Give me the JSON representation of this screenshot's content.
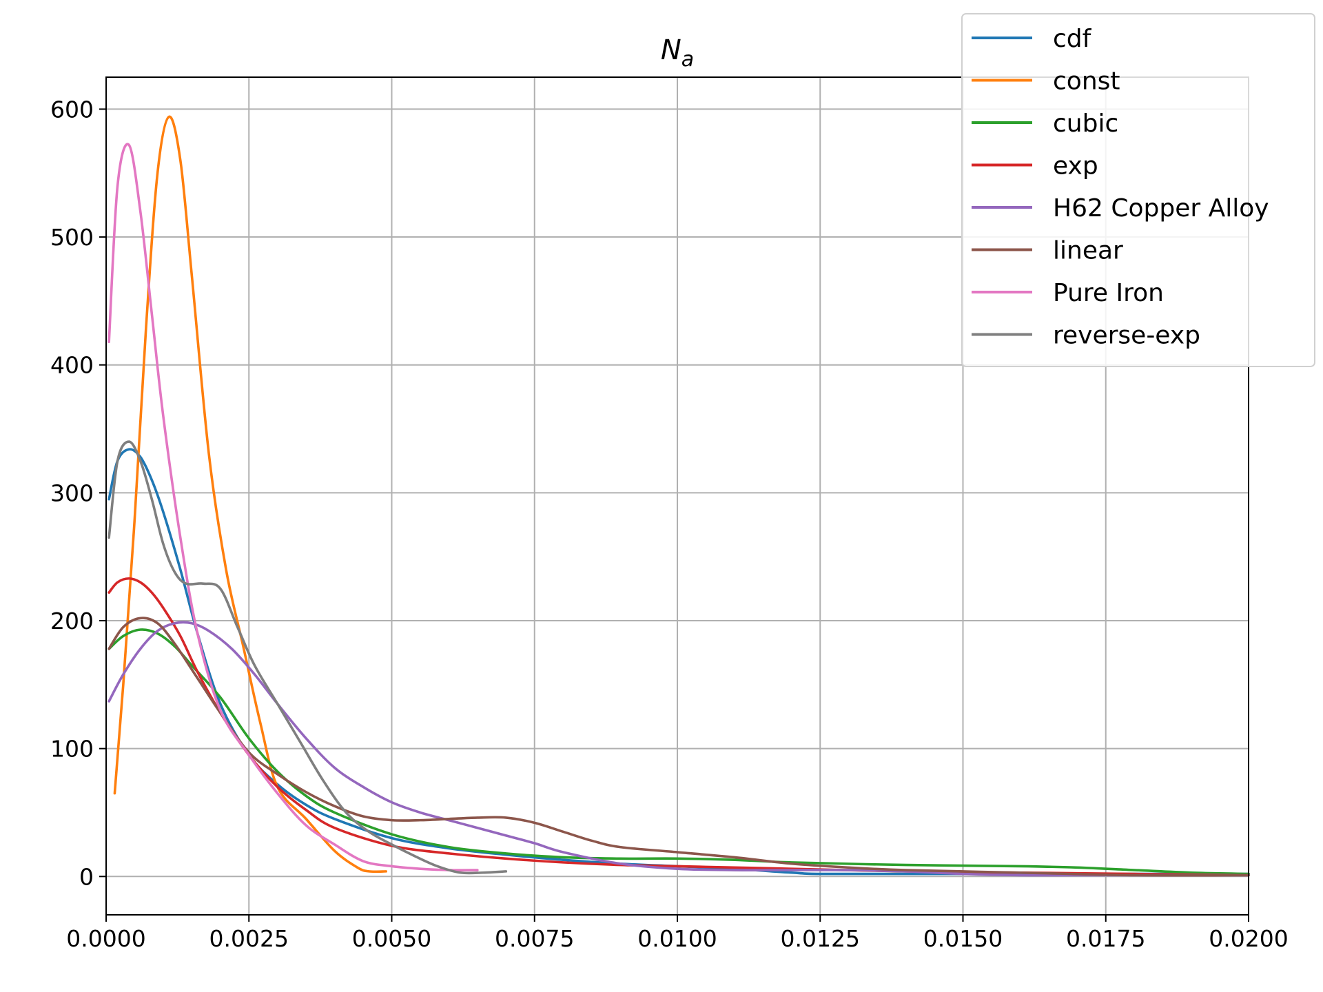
{
  "chart_data": {
    "type": "line",
    "title": "N",
    "title_subscript": "a",
    "xlabel": "",
    "ylabel": "",
    "xlim": [
      0.0,
      0.02
    ],
    "ylim": [
      -30,
      625
    ],
    "grid": true,
    "legend_position": "top-right",
    "x_ticks": [
      "0.0000",
      "0.0025",
      "0.0050",
      "0.0075",
      "0.0100",
      "0.0125",
      "0.0150",
      "0.0175",
      "0.0200"
    ],
    "x_tick_values": [
      0.0,
      0.0025,
      0.005,
      0.0075,
      0.01,
      0.0125,
      0.015,
      0.0175,
      0.02
    ],
    "y_ticks": [
      "0",
      "100",
      "200",
      "300",
      "400",
      "500",
      "600"
    ],
    "y_tick_values": [
      0,
      100,
      200,
      300,
      400,
      500,
      600
    ],
    "series": [
      {
        "name": "cdf",
        "color": "#1f77b4",
        "x": [
          5e-05,
          0.0002,
          0.0004,
          0.0006,
          0.0008,
          0.001,
          0.0013,
          0.0016,
          0.002,
          0.0025,
          0.003,
          0.0035,
          0.004,
          0.005,
          0.006,
          0.007,
          0.008,
          0.009,
          0.01,
          0.011,
          0.012,
          0.0125,
          0.014,
          0.016,
          0.018,
          0.02
        ],
        "y": [
          295,
          325,
          334,
          328,
          310,
          285,
          240,
          190,
          135,
          95,
          72,
          56,
          45,
          30,
          22,
          17,
          13,
          10,
          8,
          6,
          3,
          2,
          2,
          2,
          2,
          2
        ]
      },
      {
        "name": "const",
        "color": "#ff7f0e",
        "x": [
          0.00015,
          0.0003,
          0.0005,
          0.0007,
          0.0009,
          0.0011,
          0.0013,
          0.0015,
          0.0018,
          0.0021,
          0.0024,
          0.0027,
          0.003,
          0.0035,
          0.004,
          0.0044,
          0.0046,
          0.0049
        ],
        "y": [
          65,
          150,
          280,
          430,
          550,
          594,
          560,
          470,
          330,
          240,
          180,
          120,
          70,
          45,
          20,
          7,
          4,
          4
        ]
      },
      {
        "name": "cubic",
        "color": "#2ca02c",
        "x": [
          5e-05,
          0.0003,
          0.0006,
          0.0009,
          0.0012,
          0.0015,
          0.002,
          0.0025,
          0.003,
          0.0035,
          0.004,
          0.005,
          0.006,
          0.007,
          0.008,
          0.009,
          0.01,
          0.011,
          0.012,
          0.014,
          0.016,
          0.017,
          0.018,
          0.019,
          0.02
        ],
        "y": [
          178,
          188,
          193,
          190,
          180,
          165,
          140,
          108,
          82,
          63,
          50,
          33,
          23,
          18,
          15,
          14,
          14,
          13,
          11,
          9,
          8,
          7,
          5,
          3,
          2
        ]
      },
      {
        "name": "exp",
        "color": "#d62728",
        "x": [
          5e-05,
          0.0002,
          0.0004,
          0.0006,
          0.0008,
          0.001,
          0.0013,
          0.0016,
          0.002,
          0.0025,
          0.003,
          0.0035,
          0.004,
          0.005,
          0.006,
          0.007,
          0.008,
          0.009,
          0.01,
          0.011,
          0.012,
          0.014,
          0.016,
          0.018,
          0.02
        ],
        "y": [
          222,
          230,
          233,
          230,
          222,
          210,
          188,
          160,
          128,
          95,
          70,
          52,
          38,
          24,
          18,
          14,
          11,
          9,
          8,
          7,
          6,
          4,
          3,
          2,
          1
        ]
      },
      {
        "name": "H62 Copper Alloy",
        "color": "#9467bd",
        "x": [
          5e-05,
          0.0003,
          0.0006,
          0.0009,
          0.0012,
          0.0015,
          0.0018,
          0.0022,
          0.0026,
          0.003,
          0.0035,
          0.004,
          0.0045,
          0.005,
          0.0055,
          0.006,
          0.0065,
          0.007,
          0.0075,
          0.008,
          0.009,
          0.01,
          0.011,
          0.012,
          0.013,
          0.014,
          0.015,
          0.016,
          0.017,
          0.018,
          0.019,
          0.02
        ],
        "y": [
          137,
          158,
          178,
          192,
          198,
          198,
          192,
          178,
          158,
          135,
          108,
          85,
          70,
          58,
          50,
          44,
          38,
          32,
          26,
          19,
          10,
          6,
          5,
          5,
          5,
          4,
          2,
          1,
          1,
          1,
          1,
          1
        ]
      },
      {
        "name": "linear",
        "color": "#8c564b",
        "x": [
          5e-05,
          0.0003,
          0.0006,
          0.0009,
          0.0012,
          0.0016,
          0.002,
          0.0025,
          0.003,
          0.0035,
          0.004,
          0.0045,
          0.005,
          0.0055,
          0.006,
          0.0065,
          0.007,
          0.0075,
          0.008,
          0.0085,
          0.009,
          0.01,
          0.011,
          0.012,
          0.013,
          0.014,
          0.016,
          0.018,
          0.02
        ],
        "y": [
          178,
          195,
          202,
          198,
          182,
          155,
          128,
          97,
          80,
          66,
          55,
          47,
          44,
          44,
          45,
          46,
          46,
          42,
          35,
          28,
          23,
          19,
          15,
          10,
          7,
          5,
          3,
          1,
          1
        ]
      },
      {
        "name": "Pure Iron",
        "color": "#e377c2",
        "x": [
          5e-05,
          0.0002,
          0.0004,
          0.0006,
          0.0008,
          0.001,
          0.0013,
          0.0016,
          0.002,
          0.0025,
          0.003,
          0.0035,
          0.004,
          0.0045,
          0.005,
          0.0055,
          0.006,
          0.0065
        ],
        "y": [
          418,
          540,
          572,
          520,
          440,
          360,
          265,
          190,
          130,
          95,
          65,
          40,
          25,
          12,
          8,
          6,
          5,
          5
        ]
      },
      {
        "name": "reverse-exp",
        "color": "#7f7f7f",
        "x": [
          5e-05,
          0.0002,
          0.0004,
          0.0006,
          0.0008,
          0.001,
          0.0012,
          0.0014,
          0.0017,
          0.002,
          0.0023,
          0.0026,
          0.003,
          0.0034,
          0.0038,
          0.0042,
          0.0046,
          0.005,
          0.0054,
          0.0058,
          0.0062,
          0.0066,
          0.007
        ],
        "y": [
          265,
          325,
          340,
          325,
          295,
          260,
          238,
          229,
          229,
          225,
          195,
          165,
          135,
          105,
          75,
          50,
          35,
          25,
          16,
          8,
          3,
          3,
          4
        ]
      }
    ]
  }
}
